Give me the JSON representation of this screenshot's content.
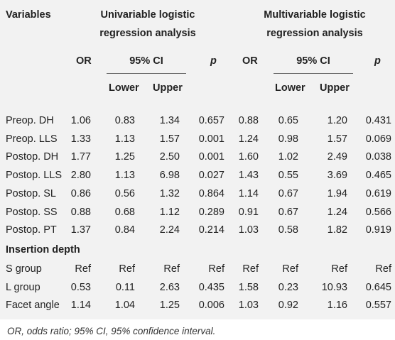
{
  "header": {
    "variables": "Variables",
    "uni_line1": "Univariable logistic",
    "uni_line2": "regression analysis",
    "multi_line1": "Multivariable logistic",
    "multi_line2": "regression analysis",
    "or": "OR",
    "ci": "95% CI",
    "p": "p",
    "lower": "Lower",
    "upper": "Upper"
  },
  "rows": [
    {
      "label": "Preop. DH",
      "u_or": "1.06",
      "u_lo": "0.83",
      "u_up": "1.34",
      "u_p": "0.657",
      "m_or": "0.88",
      "m_lo": "0.65",
      "m_up": "1.20",
      "m_p": "0.431"
    },
    {
      "label": "Preop. LLS",
      "u_or": "1.33",
      "u_lo": "1.13",
      "u_up": "1.57",
      "u_p": "0.001",
      "m_or": "1.24",
      "m_lo": "0.98",
      "m_up": "1.57",
      "m_p": "0.069"
    },
    {
      "label": "Postop. DH",
      "u_or": "1.77",
      "u_lo": "1.25",
      "u_up": "2.50",
      "u_p": "0.001",
      "m_or": "1.60",
      "m_lo": "1.02",
      "m_up": "2.49",
      "m_p": "0.038"
    },
    {
      "label": "Postop. LLS",
      "u_or": "2.80",
      "u_lo": "1.13",
      "u_up": "6.98",
      "u_p": "0.027",
      "m_or": "1.43",
      "m_lo": "0.55",
      "m_up": "3.69",
      "m_p": "0.465"
    },
    {
      "label": "Postop. SL",
      "u_or": "0.86",
      "u_lo": "0.56",
      "u_up": "1.32",
      "u_p": "0.864",
      "m_or": "1.14",
      "m_lo": "0.67",
      "m_up": "1.94",
      "m_p": "0.619"
    },
    {
      "label": "Postop. SS",
      "u_or": "0.88",
      "u_lo": "0.68",
      "u_up": "1.12",
      "u_p": "0.289",
      "m_or": "0.91",
      "m_lo": "0.67",
      "m_up": "1.24",
      "m_p": "0.566"
    },
    {
      "label": "Postop. PT",
      "u_or": "1.37",
      "u_lo": "0.84",
      "u_up": "2.24",
      "u_p": "0.214",
      "m_or": "1.03",
      "m_lo": "0.58",
      "m_up": "1.82",
      "m_p": "0.919"
    }
  ],
  "section": "Insertion depth",
  "rows2": [
    {
      "label": "S group",
      "u_or": "Ref",
      "u_lo": "Ref",
      "u_up": "Ref",
      "u_p": "Ref",
      "m_or": "Ref",
      "m_lo": "Ref",
      "m_up": "Ref",
      "m_p": "Ref"
    },
    {
      "label": "L group",
      "u_or": "0.53",
      "u_lo": "0.11",
      "u_up": "2.63",
      "u_p": "0.435",
      "m_or": "1.58",
      "m_lo": "0.23",
      "m_up": "10.93",
      "m_p": "0.645"
    },
    {
      "label": "Facet angle",
      "u_or": "1.14",
      "u_lo": "1.04",
      "u_up": "1.25",
      "u_p": "0.006",
      "m_or": "1.03",
      "m_lo": "0.92",
      "m_up": "1.16",
      "m_p": "0.557"
    }
  ],
  "footnote": "OR, odds ratio; 95% CI, 95% confidence interval."
}
